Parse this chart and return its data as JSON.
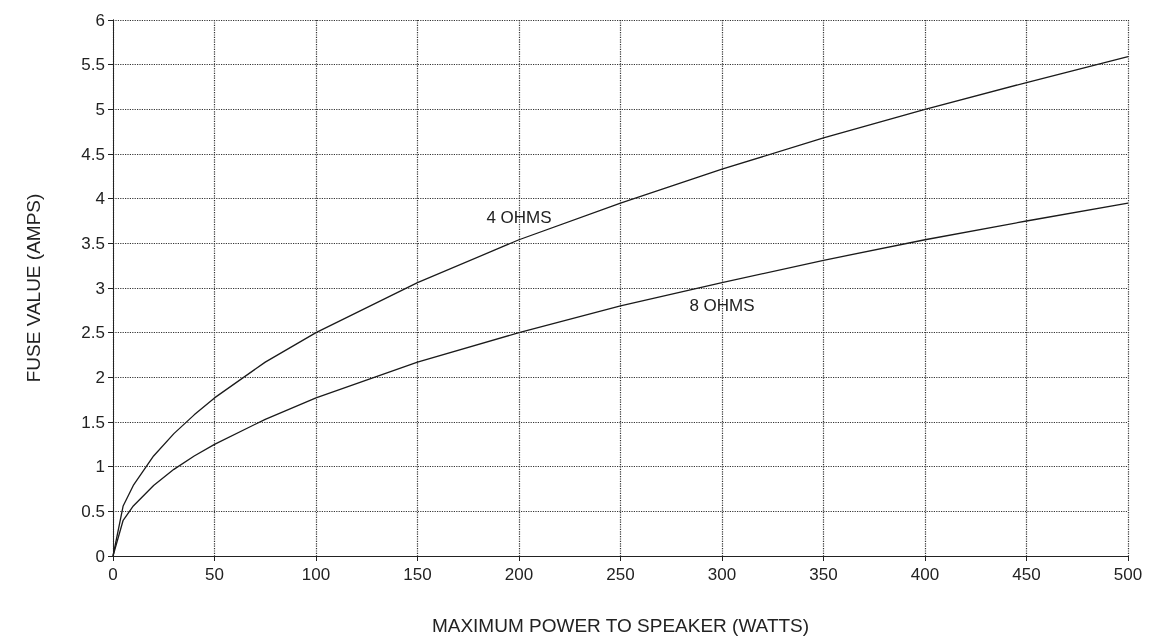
{
  "chart_data": {
    "type": "line",
    "xlabel": "MAXIMUM POWER TO SPEAKER (WATTS)",
    "ylabel": "FUSE VALUE (AMPS)",
    "x": [
      0,
      5,
      10,
      20,
      30,
      40,
      50,
      75,
      100,
      150,
      200,
      250,
      300,
      350,
      400,
      450,
      500
    ],
    "series": [
      {
        "name": "4 OHMS",
        "color": "#1a1a1a",
        "values": [
          0,
          0.56,
          0.79,
          1.12,
          1.37,
          1.58,
          1.77,
          2.17,
          2.5,
          3.06,
          3.54,
          3.95,
          4.33,
          4.68,
          5,
          5.3,
          5.59
        ]
      },
      {
        "name": "8 OHMS",
        "color": "#1a1a1a",
        "values": [
          0,
          0.4,
          0.56,
          0.79,
          0.97,
          1.12,
          1.25,
          1.53,
          1.77,
          2.17,
          2.5,
          2.8,
          3.06,
          3.31,
          3.54,
          3.75,
          3.95
        ]
      }
    ],
    "xlim": [
      0,
      500
    ],
    "xticks": [
      0,
      50,
      100,
      150,
      200,
      250,
      300,
      350,
      400,
      450,
      500
    ],
    "ylim": [
      0,
      6
    ],
    "yticks": [
      0,
      0.5,
      1,
      1.5,
      2,
      2.5,
      3,
      3.5,
      4,
      4.5,
      5,
      5.5,
      6
    ],
    "grid": true,
    "legend": false,
    "marker": "none",
    "line_style": "solid"
  }
}
